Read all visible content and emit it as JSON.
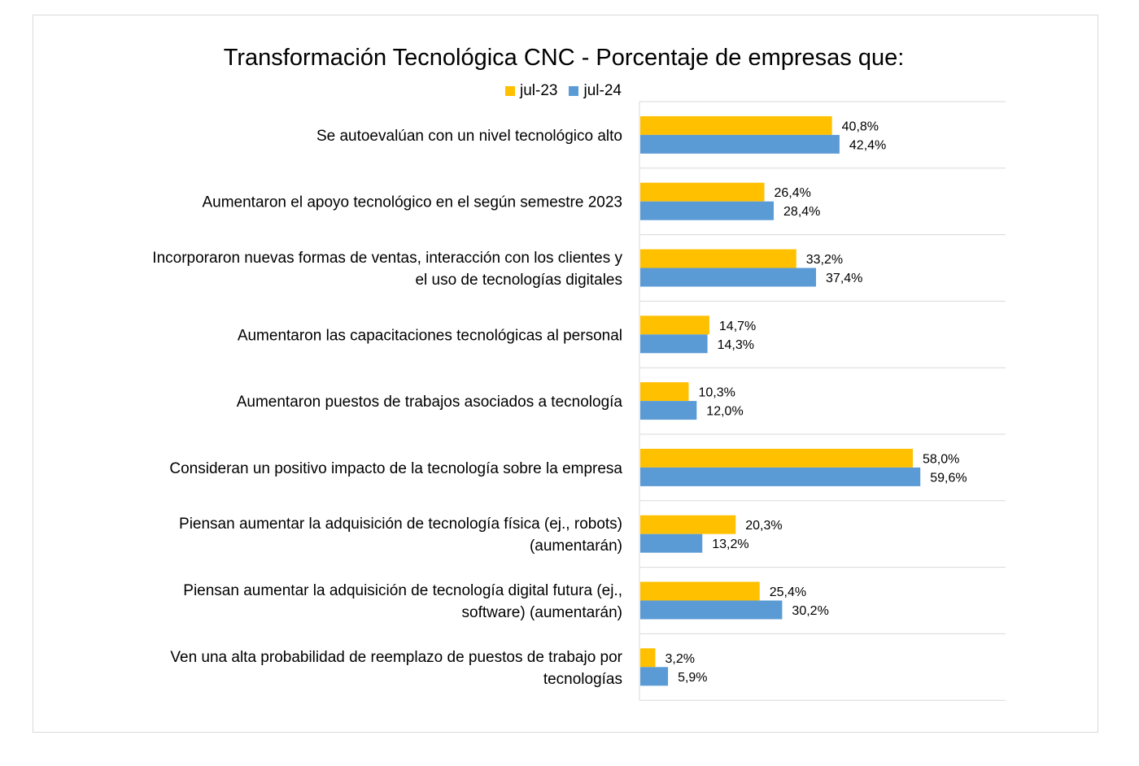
{
  "chart_data": {
    "type": "bar",
    "orientation": "horizontal",
    "title": "Transformación Tecnológica CNC - Porcentaje de empresas que:",
    "xlabel": "",
    "ylabel": "",
    "xlim": [
      0,
      80
    ],
    "grid": "horizontal separators",
    "legend_position": "top",
    "categories": [
      [
        "Se autoevalúan con un nivel tecnológico alto"
      ],
      [
        "Aumentaron el apoyo tecnológico en el según semestre 2023"
      ],
      [
        "Incorporaron nuevas formas de ventas, interacción con los clientes y",
        "el uso de tecnologías digitales"
      ],
      [
        "Aumentaron las capacitaciones tecnológicas al personal"
      ],
      [
        "Aumentaron puestos de trabajos asociados a tecnología"
      ],
      [
        "Consideran un positivo impacto de la tecnología sobre la empresa"
      ],
      [
        "Piensan aumentar la adquisición de tecnología física  (ej., robots)",
        "(aumentarán)"
      ],
      [
        "Piensan aumentar la adquisición  de tecnología digital futura (ej.,",
        "software) (aumentarán)"
      ],
      [
        "Ven una alta probabilidad de reemplazo de puestos de trabajo por",
        "tecnologías"
      ]
    ],
    "series": [
      {
        "name": "jul-23",
        "color": "#FFC000",
        "values": [
          40.8,
          26.4,
          33.2,
          14.7,
          10.3,
          58.0,
          20.3,
          25.4,
          3.2
        ],
        "labels": [
          "40,8%",
          "26,4%",
          "33,2%",
          "14,7%",
          "10,3%",
          "58,0%",
          "20,3%",
          "25,4%",
          "3,2%"
        ]
      },
      {
        "name": "jul-24",
        "color": "#5B9BD5",
        "values": [
          42.4,
          28.4,
          37.4,
          14.3,
          12.0,
          59.6,
          13.2,
          30.2,
          5.9
        ],
        "labels": [
          "42,4%",
          "28,4%",
          "37,4%",
          "14,3%",
          "12,0%",
          "59,6%",
          "13,2%",
          "30,2%",
          "5,9%"
        ]
      }
    ]
  }
}
